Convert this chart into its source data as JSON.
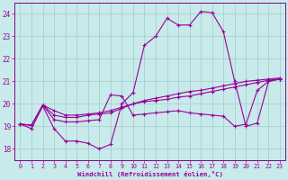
{
  "xlabel": "Windchill (Refroidissement éolien,°C)",
  "background_color": "#c8eaea",
  "grid_color": "#a0cccc",
  "line_color": "#990099",
  "spine_color": "#880088",
  "xlim": [
    -0.5,
    23.5
  ],
  "ylim": [
    17.5,
    24.5
  ],
  "x_ticks": [
    0,
    1,
    2,
    3,
    4,
    5,
    6,
    7,
    8,
    9,
    10,
    11,
    12,
    13,
    14,
    15,
    16,
    17,
    18,
    19,
    20,
    21,
    22,
    23
  ],
  "y_ticks": [
    18,
    19,
    20,
    21,
    22,
    23,
    24
  ],
  "line1": [
    19.1,
    18.9,
    19.9,
    18.9,
    18.35,
    18.35,
    18.25,
    18.0,
    18.2,
    20.0,
    20.5,
    22.6,
    23.0,
    23.8,
    23.5,
    23.5,
    24.1,
    24.05,
    23.2,
    21.0,
    19.0,
    19.15,
    21.0,
    21.1
  ],
  "line2": [
    19.1,
    19.05,
    19.95,
    19.3,
    19.2,
    19.2,
    19.25,
    19.3,
    20.4,
    20.35,
    19.5,
    19.55,
    19.6,
    19.65,
    19.7,
    19.6,
    19.55,
    19.5,
    19.45,
    19.0,
    19.1,
    20.6,
    21.0,
    21.1
  ],
  "line3": [
    19.1,
    19.05,
    19.95,
    19.5,
    19.4,
    19.4,
    19.5,
    19.55,
    19.6,
    19.8,
    20.0,
    20.1,
    20.15,
    20.2,
    20.3,
    20.35,
    20.45,
    20.55,
    20.65,
    20.75,
    20.85,
    20.95,
    21.05,
    21.1
  ],
  "line4": [
    19.1,
    19.05,
    19.95,
    19.7,
    19.5,
    19.5,
    19.55,
    19.6,
    19.7,
    19.85,
    20.0,
    20.15,
    20.25,
    20.35,
    20.45,
    20.55,
    20.6,
    20.7,
    20.8,
    20.9,
    21.0,
    21.05,
    21.1,
    21.15
  ]
}
